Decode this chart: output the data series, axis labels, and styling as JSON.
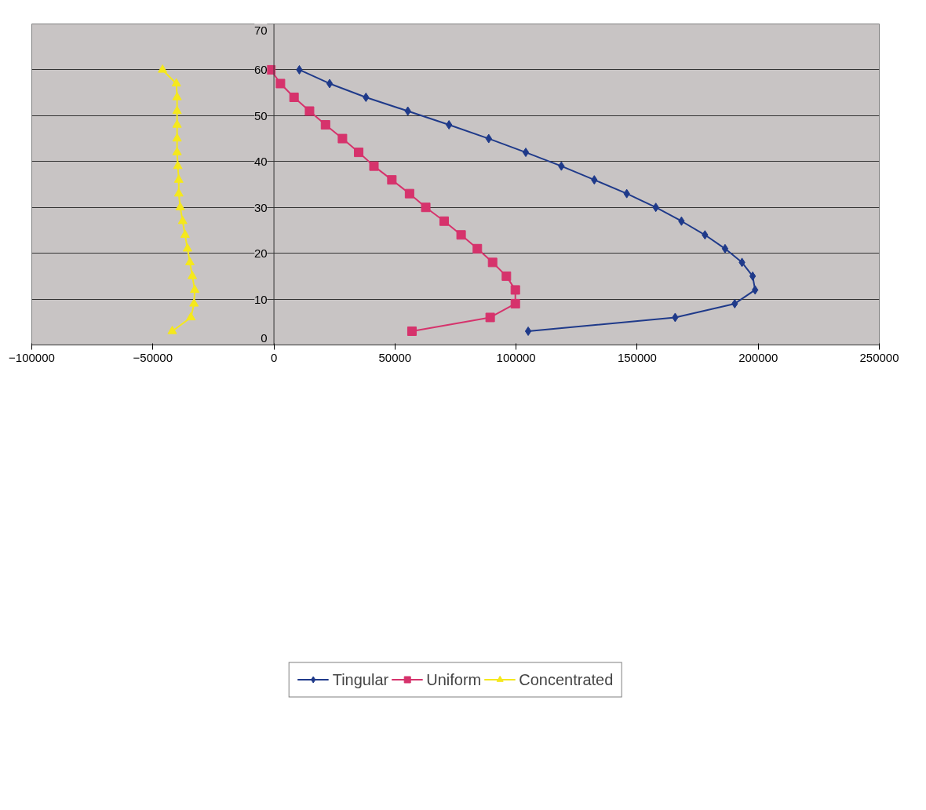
{
  "chart_data": {
    "type": "line",
    "xlim": [
      -100000,
      250000
    ],
    "xticks": [
      -100000,
      -50000,
      0,
      50000,
      100000,
      150000,
      200000,
      250000
    ],
    "ylim": [
      0,
      70
    ],
    "yticks": [
      0,
      10,
      20,
      30,
      40,
      50,
      60,
      70
    ],
    "grid": "y",
    "legend": "bottom",
    "line_style": "solid",
    "series": [
      {
        "name": "Tingular",
        "color": "#1f3a8a",
        "marker": "diamond",
        "x": [
          105000,
          165700,
          190300,
          198700,
          197700,
          193300,
          186300,
          178000,
          168300,
          157700,
          145700,
          132300,
          118700,
          104000,
          88700,
          72300,
          55300,
          38000,
          23000,
          10500
        ],
        "values": [
          3,
          6,
          9,
          12,
          15,
          18,
          21,
          24,
          27,
          30,
          33,
          36,
          39,
          42,
          45,
          48,
          51,
          54,
          57,
          60
        ]
      },
      {
        "name": "Uniform",
        "color": "#d6336c",
        "marker": "square",
        "x": [
          57000,
          89300,
          99700,
          99700,
          96000,
          90300,
          84000,
          77300,
          70300,
          62700,
          56000,
          48700,
          41300,
          35000,
          28300,
          21300,
          14700,
          8300,
          2700,
          -1300
        ],
        "values": [
          3,
          6,
          9,
          12,
          15,
          18,
          21,
          24,
          27,
          30,
          33,
          36,
          39,
          42,
          45,
          48,
          51,
          54,
          57,
          60
        ]
      },
      {
        "name": "Concentrated",
        "color": "#f5e81c",
        "marker": "triangle",
        "x": [
          -42000,
          -34300,
          -33000,
          -32700,
          -33700,
          -34700,
          -35700,
          -36700,
          -37700,
          -38700,
          -39300,
          -39300,
          -39700,
          -40000,
          -40000,
          -40000,
          -40000,
          -40000,
          -40300,
          -46000
        ],
        "values": [
          3,
          6,
          9,
          12,
          15,
          18,
          21,
          24,
          27,
          30,
          33,
          36,
          39,
          42,
          45,
          48,
          51,
          54,
          57,
          60
        ]
      }
    ]
  }
}
